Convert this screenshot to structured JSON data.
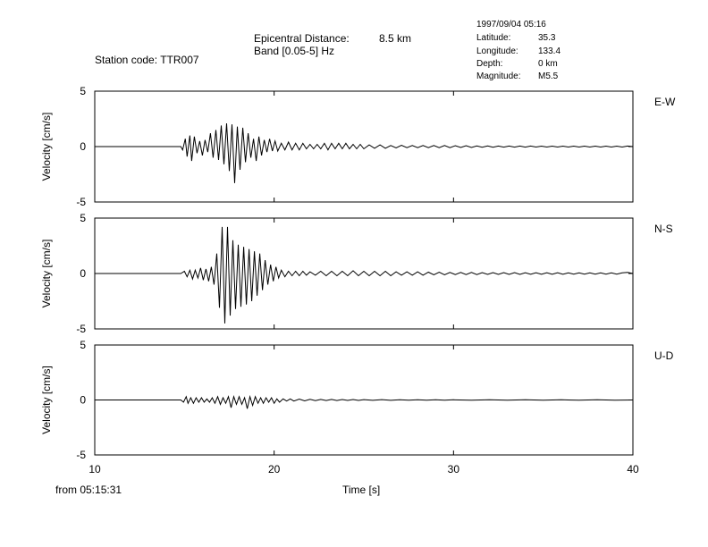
{
  "header": {
    "station_label": "Station code:",
    "station_code": "TTR007",
    "epicentral_label": "Epicentral Distance:",
    "epicentral_value": "8.5 km",
    "band_label": "Band [0.05-5] Hz",
    "datetime": "1997/09/04 05:16",
    "latitude_label": "Latitude:",
    "latitude_value": "35.3",
    "longitude_label": "Longitude:",
    "longitude_value": "133.4",
    "depth_label": "Depth:",
    "depth_value": "0 km",
    "magnitude_label": "Magnitude:",
    "magnitude_value": "M5.5"
  },
  "footer": {
    "start_time": "from 05:15:31"
  },
  "chart_data": {
    "type": "line",
    "xlabel": "Time [s]",
    "xlim": [
      10,
      40
    ],
    "x_ticks": [
      "10",
      "20",
      "30",
      "40"
    ],
    "ylabel": "Velocity [cm/s]",
    "ylim": [
      -5,
      5
    ],
    "y_ticks": [
      "5",
      "0",
      "-5"
    ],
    "grid": false,
    "panels": [
      {
        "name": "E-W",
        "peak": 3.3,
        "trace": [
          [
            10,
            0
          ],
          [
            14.8,
            0
          ],
          [
            14.9,
            -0.3
          ],
          [
            15.05,
            0.7
          ],
          [
            15.15,
            -0.9
          ],
          [
            15.3,
            1.0
          ],
          [
            15.4,
            -1.3
          ],
          [
            15.55,
            0.9
          ],
          [
            15.7,
            -0.6
          ],
          [
            15.85,
            0.5
          ],
          [
            16.0,
            -0.8
          ],
          [
            16.15,
            0.6
          ],
          [
            16.3,
            -0.5
          ],
          [
            16.45,
            1.2
          ],
          [
            16.6,
            -1.0
          ],
          [
            16.75,
            1.5
          ],
          [
            16.9,
            -1.2
          ],
          [
            17.05,
            1.9
          ],
          [
            17.2,
            -1.6
          ],
          [
            17.35,
            2.1
          ],
          [
            17.5,
            -2.2
          ],
          [
            17.65,
            2.0
          ],
          [
            17.8,
            -3.3
          ],
          [
            17.95,
            1.8
          ],
          [
            18.1,
            -2.1
          ],
          [
            18.25,
            1.7
          ],
          [
            18.4,
            -1.4
          ],
          [
            18.55,
            1.2
          ],
          [
            18.7,
            -1.0
          ],
          [
            18.85,
            0.7
          ],
          [
            19.0,
            -1.3
          ],
          [
            19.15,
            0.9
          ],
          [
            19.3,
            -0.8
          ],
          [
            19.45,
            0.6
          ],
          [
            19.6,
            -0.5
          ],
          [
            19.75,
            0.7
          ],
          [
            19.9,
            -0.4
          ],
          [
            20.05,
            0.5
          ],
          [
            20.2,
            -0.4
          ],
          [
            20.4,
            0.3
          ],
          [
            20.6,
            -0.3
          ],
          [
            20.8,
            0.4
          ],
          [
            21.0,
            -0.3
          ],
          [
            21.2,
            0.3
          ],
          [
            21.4,
            -0.3
          ],
          [
            21.6,
            0.3
          ],
          [
            21.8,
            -0.2
          ],
          [
            22.0,
            0.2
          ],
          [
            22.2,
            -0.2
          ],
          [
            22.4,
            0.2
          ],
          [
            22.6,
            -0.2
          ],
          [
            22.8,
            0.3
          ],
          [
            23.0,
            -0.3
          ],
          [
            23.2,
            0.3
          ],
          [
            23.4,
            -0.2
          ],
          [
            23.6,
            0.3
          ],
          [
            23.8,
            -0.2
          ],
          [
            24.0,
            0.3
          ],
          [
            24.2,
            -0.2
          ],
          [
            24.4,
            0.2
          ],
          [
            24.6,
            -0.2
          ],
          [
            24.8,
            0.2
          ],
          [
            25.0,
            -0.2
          ],
          [
            25.3,
            0.15
          ],
          [
            25.6,
            -0.15
          ],
          [
            25.9,
            0.15
          ],
          [
            26.2,
            -0.15
          ],
          [
            26.5,
            0.1
          ],
          [
            26.8,
            -0.12
          ],
          [
            27.1,
            0.12
          ],
          [
            27.4,
            -0.1
          ],
          [
            27.7,
            0.1
          ],
          [
            28.0,
            -0.1
          ],
          [
            28.3,
            0.1
          ],
          [
            28.6,
            -0.1
          ],
          [
            28.9,
            0.1
          ],
          [
            29.2,
            -0.1
          ],
          [
            29.5,
            0.1
          ],
          [
            29.8,
            -0.1
          ],
          [
            30.1,
            0.08
          ],
          [
            30.4,
            -0.08
          ],
          [
            30.7,
            0.08
          ],
          [
            31.0,
            -0.08
          ],
          [
            31.3,
            0.06
          ],
          [
            31.6,
            -0.06
          ],
          [
            31.9,
            0.06
          ],
          [
            32.2,
            -0.06
          ],
          [
            32.5,
            0.05
          ],
          [
            32.8,
            -0.05
          ],
          [
            33.1,
            0.05
          ],
          [
            33.4,
            -0.05
          ],
          [
            33.7,
            0.05
          ],
          [
            34.0,
            -0.05
          ],
          [
            34.3,
            0.05
          ],
          [
            34.6,
            -0.04
          ],
          [
            34.9,
            0.04
          ],
          [
            35.2,
            -0.04
          ],
          [
            35.5,
            0.04
          ],
          [
            35.8,
            -0.04
          ],
          [
            36.1,
            0.04
          ],
          [
            36.4,
            -0.04
          ],
          [
            36.7,
            0.04
          ],
          [
            37.0,
            -0.04
          ],
          [
            37.3,
            0.04
          ],
          [
            37.6,
            -0.04
          ],
          [
            37.9,
            0.04
          ],
          [
            38.2,
            -0.04
          ],
          [
            38.5,
            0.04
          ],
          [
            38.8,
            -0.04
          ],
          [
            39.1,
            0.04
          ],
          [
            39.4,
            -0.04
          ],
          [
            39.7,
            0.05
          ],
          [
            40,
            0
          ]
        ]
      },
      {
        "name": "N-S",
        "peak": 4.5,
        "trace": [
          [
            10,
            0
          ],
          [
            14.8,
            0
          ],
          [
            15.0,
            0.2
          ],
          [
            15.15,
            -0.3
          ],
          [
            15.3,
            0.3
          ],
          [
            15.45,
            -0.5
          ],
          [
            15.6,
            0.3
          ],
          [
            15.75,
            -0.4
          ],
          [
            15.9,
            0.5
          ],
          [
            16.05,
            -0.6
          ],
          [
            16.2,
            0.4
          ],
          [
            16.35,
            -0.7
          ],
          [
            16.5,
            0.6
          ],
          [
            16.65,
            -1.0
          ],
          [
            16.8,
            1.8
          ],
          [
            16.95,
            -3.1
          ],
          [
            17.1,
            4.2
          ],
          [
            17.25,
            -4.5
          ],
          [
            17.4,
            4.2
          ],
          [
            17.55,
            -3.8
          ],
          [
            17.7,
            3.0
          ],
          [
            17.85,
            -3.2
          ],
          [
            18.0,
            2.6
          ],
          [
            18.15,
            -3.0
          ],
          [
            18.3,
            2.4
          ],
          [
            18.45,
            -2.8
          ],
          [
            18.6,
            2.2
          ],
          [
            18.75,
            -2.5
          ],
          [
            18.9,
            2.0
          ],
          [
            19.05,
            -2.0
          ],
          [
            19.2,
            1.8
          ],
          [
            19.35,
            -1.5
          ],
          [
            19.5,
            1.2
          ],
          [
            19.65,
            -1.0
          ],
          [
            19.8,
            0.8
          ],
          [
            19.95,
            -0.7
          ],
          [
            20.1,
            0.6
          ],
          [
            20.25,
            -0.4
          ],
          [
            20.4,
            0.3
          ],
          [
            20.6,
            -0.3
          ],
          [
            20.8,
            0.2
          ],
          [
            21.0,
            -0.2
          ],
          [
            21.2,
            0.2
          ],
          [
            21.4,
            -0.2
          ],
          [
            21.6,
            0.2
          ],
          [
            21.8,
            -0.15
          ],
          [
            22.0,
            0.15
          ],
          [
            22.3,
            -0.15
          ],
          [
            22.6,
            0.2
          ],
          [
            22.9,
            -0.2
          ],
          [
            23.2,
            0.2
          ],
          [
            23.5,
            -0.2
          ],
          [
            23.8,
            0.2
          ],
          [
            24.1,
            -0.2
          ],
          [
            24.4,
            0.25
          ],
          [
            24.7,
            -0.2
          ],
          [
            25.0,
            0.2
          ],
          [
            25.3,
            -0.2
          ],
          [
            25.6,
            0.2
          ],
          [
            25.9,
            -0.2
          ],
          [
            26.2,
            0.2
          ],
          [
            26.5,
            -0.2
          ],
          [
            26.8,
            0.15
          ],
          [
            27.1,
            -0.15
          ],
          [
            27.4,
            0.15
          ],
          [
            27.7,
            -0.15
          ],
          [
            28.0,
            0.15
          ],
          [
            28.3,
            -0.15
          ],
          [
            28.6,
            0.12
          ],
          [
            28.9,
            -0.12
          ],
          [
            29.2,
            0.12
          ],
          [
            29.5,
            -0.12
          ],
          [
            29.8,
            0.1
          ],
          [
            30.1,
            -0.1
          ],
          [
            30.4,
            0.1
          ],
          [
            30.7,
            -0.1
          ],
          [
            31.0,
            0.1
          ],
          [
            31.3,
            -0.1
          ],
          [
            31.6,
            0.08
          ],
          [
            31.9,
            -0.08
          ],
          [
            32.2,
            0.08
          ],
          [
            32.5,
            -0.08
          ],
          [
            32.8,
            0.08
          ],
          [
            33.1,
            -0.08
          ],
          [
            33.4,
            0.08
          ],
          [
            33.7,
            -0.08
          ],
          [
            34.0,
            0.07
          ],
          [
            34.3,
            -0.07
          ],
          [
            34.6,
            0.07
          ],
          [
            34.9,
            -0.07
          ],
          [
            35.2,
            0.07
          ],
          [
            35.5,
            -0.07
          ],
          [
            35.8,
            0.07
          ],
          [
            36.1,
            -0.07
          ],
          [
            36.4,
            0.06
          ],
          [
            36.7,
            -0.06
          ],
          [
            37.0,
            0.06
          ],
          [
            37.3,
            -0.06
          ],
          [
            37.6,
            0.06
          ],
          [
            37.9,
            -0.06
          ],
          [
            38.2,
            0.06
          ],
          [
            38.5,
            -0.06
          ],
          [
            38.8,
            0.06
          ],
          [
            39.1,
            -0.06
          ],
          [
            39.4,
            0.06
          ],
          [
            39.7,
            0.1
          ],
          [
            40,
            0
          ]
        ]
      },
      {
        "name": "U-D",
        "peak": 0.8,
        "trace": [
          [
            10,
            0
          ],
          [
            14.8,
            0
          ],
          [
            14.95,
            -0.2
          ],
          [
            15.1,
            0.3
          ],
          [
            15.2,
            -0.3
          ],
          [
            15.35,
            0.2
          ],
          [
            15.5,
            -0.3
          ],
          [
            15.65,
            0.2
          ],
          [
            15.8,
            -0.2
          ],
          [
            15.95,
            0.2
          ],
          [
            16.1,
            -0.2
          ],
          [
            16.25,
            0.1
          ],
          [
            16.4,
            -0.2
          ],
          [
            16.55,
            0.2
          ],
          [
            16.7,
            -0.3
          ],
          [
            16.85,
            0.3
          ],
          [
            17.0,
            -0.4
          ],
          [
            17.15,
            0.2
          ],
          [
            17.3,
            -0.3
          ],
          [
            17.45,
            0.3
          ],
          [
            17.6,
            -0.7
          ],
          [
            17.75,
            0.3
          ],
          [
            17.9,
            -0.4
          ],
          [
            18.05,
            0.3
          ],
          [
            18.2,
            -0.4
          ],
          [
            18.35,
            0.2
          ],
          [
            18.5,
            -0.8
          ],
          [
            18.65,
            0.3
          ],
          [
            18.8,
            -0.5
          ],
          [
            18.95,
            0.3
          ],
          [
            19.1,
            -0.3
          ],
          [
            19.25,
            0.2
          ],
          [
            19.4,
            -0.3
          ],
          [
            19.55,
            0.2
          ],
          [
            19.7,
            -0.2
          ],
          [
            19.85,
            0.2
          ],
          [
            20.0,
            -0.3
          ],
          [
            20.15,
            0.1
          ],
          [
            20.3,
            -0.2
          ],
          [
            20.5,
            0.1
          ],
          [
            20.7,
            -0.1
          ],
          [
            20.9,
            0.1
          ],
          [
            21.1,
            -0.1
          ],
          [
            21.4,
            0.08
          ],
          [
            21.7,
            -0.08
          ],
          [
            22.0,
            0.06
          ],
          [
            22.3,
            -0.06
          ],
          [
            22.6,
            0.05
          ],
          [
            22.9,
            -0.05
          ],
          [
            23.2,
            0.05
          ],
          [
            23.5,
            -0.05
          ],
          [
            23.8,
            0.04
          ],
          [
            24.1,
            -0.04
          ],
          [
            24.4,
            0.04
          ],
          [
            24.7,
            -0.04
          ],
          [
            25.0,
            0.03
          ],
          [
            25.5,
            -0.03
          ],
          [
            26.0,
            0.03
          ],
          [
            26.5,
            -0.03
          ],
          [
            27.0,
            0.02
          ],
          [
            27.5,
            -0.02
          ],
          [
            28.0,
            0.02
          ],
          [
            28.5,
            -0.02
          ],
          [
            29.0,
            0.02
          ],
          [
            29.5,
            -0.02
          ],
          [
            30.0,
            0.02
          ],
          [
            31.0,
            -0.02
          ],
          [
            32.0,
            0.02
          ],
          [
            33.0,
            -0.02
          ],
          [
            34.0,
            0.02
          ],
          [
            35.0,
            -0.02
          ],
          [
            36.0,
            0.02
          ],
          [
            37.0,
            -0.02
          ],
          [
            38.0,
            0.02
          ],
          [
            39.0,
            -0.02
          ],
          [
            40,
            0
          ]
        ]
      }
    ]
  }
}
